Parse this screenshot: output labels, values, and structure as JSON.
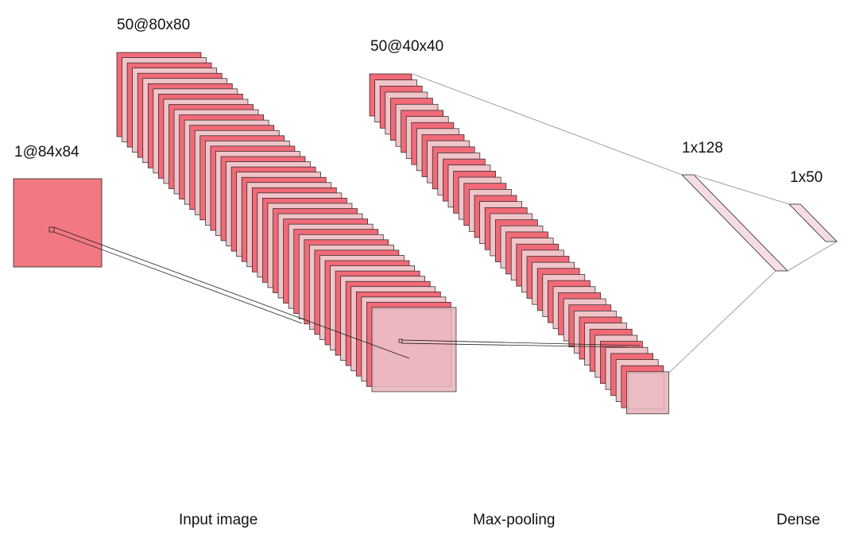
{
  "colors": {
    "fill_dark": "#f06a77",
    "fill_light": "#f0c4c9",
    "fill_input": "#f27883",
    "fill_highlight": "#ebbcc2",
    "fill_dense": "#f6dde1",
    "stroke": "#222222",
    "connector": "#8a8a8a"
  },
  "layers": [
    {
      "id": "input",
      "dims": "1@84x84",
      "maps": 1
    },
    {
      "id": "conv",
      "dims": "50@80x80",
      "maps": 50
    },
    {
      "id": "pool",
      "dims": "50@40x40",
      "maps": 50
    },
    {
      "id": "dense1",
      "dims": "1x128"
    },
    {
      "id": "dense2",
      "dims": "1x50"
    }
  ],
  "captions": [
    "Input image",
    "Max-pooling",
    "Dense"
  ]
}
